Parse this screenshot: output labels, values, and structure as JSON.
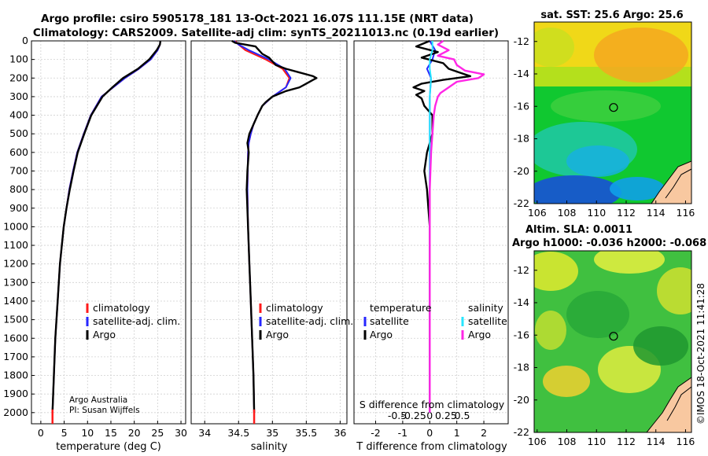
{
  "title": {
    "line1": "Argo profile: csiro 5905178_181 13-Oct-2021 16.07S 111.15E (NRT data)",
    "line2": "Climatology: CARS2009. Satellite-adj clim: synTS_20211013.nc (0.19d earlier)"
  },
  "colors": {
    "climatology": "#ff1a1a",
    "satellite": "#2626ff",
    "argo": "#000000",
    "sat_cyan": "#26e6ff",
    "sal_magenta": "#ff26e6"
  },
  "chart_data": [
    {
      "type": "line",
      "panel": "temperature",
      "xlabel": "temperature (deg C)",
      "ylabel": "",
      "xlim": [
        -2,
        31
      ],
      "ylim": [
        2060,
        0
      ],
      "xticks": [
        0,
        5,
        10,
        15,
        20,
        25,
        30
      ],
      "yticks": [
        0,
        100,
        200,
        300,
        400,
        500,
        600,
        700,
        800,
        900,
        1000,
        1100,
        1200,
        1300,
        1400,
        1500,
        1600,
        1700,
        1800,
        1900,
        2000
      ],
      "legend": [
        "climatology",
        "satellite-adj. clim.",
        "Argo"
      ],
      "legend_position": "lower-right",
      "annotations": [
        "Argo Australia",
        "PI: Susan Wijffels"
      ],
      "series": [
        {
          "name": "climatology",
          "depth": [
            0,
            20,
            50,
            100,
            150,
            200,
            250,
            300,
            400,
            500,
            600,
            700,
            800,
            900,
            1000,
            1200,
            1400,
            1600,
            1800,
            2000
          ],
          "values": [
            25.6,
            25.5,
            25.0,
            23.5,
            21.0,
            18.0,
            15.5,
            13.0,
            10.7,
            9.2,
            7.8,
            6.9,
            6.1,
            5.5,
            4.9,
            4.1,
            3.6,
            3.1,
            2.8,
            2.5
          ]
        },
        {
          "name": "satellite-adj. clim.",
          "depth": [
            0,
            20,
            50,
            100,
            150,
            200,
            250,
            300,
            400,
            500,
            600,
            700,
            800,
            900,
            1000,
            1200,
            1400,
            1600,
            1800,
            2000
          ],
          "values": [
            25.6,
            25.5,
            25.0,
            23.5,
            21.0,
            18.0,
            15.5,
            13.0,
            10.7,
            9.2,
            7.8,
            6.9,
            6.1,
            5.5,
            4.9,
            4.1,
            3.6,
            3.1,
            2.8,
            2.5
          ]
        },
        {
          "name": "Argo",
          "depth": [
            0,
            20,
            50,
            100,
            150,
            200,
            250,
            300,
            400,
            500,
            600,
            700,
            800,
            900,
            1000,
            1200,
            1400,
            1600,
            1800,
            2000
          ],
          "values": [
            25.6,
            25.5,
            24.8,
            23.2,
            20.8,
            17.6,
            15.3,
            13.2,
            10.8,
            9.3,
            7.9,
            7.0,
            6.2,
            5.5,
            4.9,
            4.1,
            3.6,
            3.1,
            2.8,
            2.5
          ]
        }
      ]
    },
    {
      "type": "line",
      "panel": "salinity",
      "xlabel": "salinity",
      "xlim": [
        33.8,
        36.1
      ],
      "ylim": [
        2060,
        0
      ],
      "xticks": [
        34,
        34.5,
        35,
        35.5,
        36
      ],
      "legend": [
        "climatology",
        "satellite-adj. clim.",
        "Argo"
      ],
      "legend_position": "lower-right",
      "series": [
        {
          "name": "climatology",
          "depth": [
            0,
            20,
            50,
            100,
            150,
            200,
            250,
            300,
            350,
            400,
            450,
            500,
            550,
            600,
            800,
            1000,
            1200,
            1400,
            1600,
            1800,
            2000
          ],
          "values": [
            34.45,
            34.5,
            34.6,
            34.9,
            35.15,
            35.25,
            35.2,
            35.0,
            34.85,
            34.78,
            34.72,
            34.68,
            34.65,
            34.64,
            34.63,
            34.64,
            34.66,
            34.68,
            34.7,
            34.72,
            34.73
          ]
        },
        {
          "name": "satellite-adj. clim.",
          "depth": [
            0,
            20,
            50,
            100,
            150,
            200,
            250,
            300,
            350,
            400,
            450,
            500,
            550,
            600,
            800,
            1000,
            1200,
            1400,
            1600,
            1800,
            2000
          ],
          "values": [
            34.43,
            34.5,
            34.65,
            34.95,
            35.18,
            35.27,
            35.2,
            35.0,
            34.85,
            34.78,
            34.72,
            34.68,
            34.65,
            34.64,
            34.63,
            34.64,
            34.66,
            34.68,
            34.7,
            34.72,
            34.73
          ]
        },
        {
          "name": "Argo",
          "depth": [
            0,
            10,
            30,
            50,
            70,
            90,
            110,
            130,
            150,
            170,
            190,
            200,
            210,
            230,
            250,
            270,
            300,
            330,
            350,
            400,
            450,
            500,
            550,
            600,
            700,
            800,
            1000,
            1200,
            1400,
            1600,
            1800,
            2000
          ],
          "values": [
            34.4,
            34.45,
            34.75,
            34.8,
            34.85,
            34.95,
            35.0,
            35.05,
            35.2,
            35.4,
            35.6,
            35.65,
            35.6,
            35.5,
            35.4,
            35.2,
            35.0,
            34.9,
            34.85,
            34.78,
            34.72,
            34.66,
            34.63,
            34.65,
            34.63,
            34.62,
            34.64,
            34.66,
            34.68,
            34.7,
            34.72,
            34.73
          ]
        }
      ]
    },
    {
      "type": "line",
      "panel": "difference",
      "xlabel": "T difference from climatology",
      "secondary_xlabel": "S difference from climatology",
      "xlim": [
        -2.8,
        2.9
      ],
      "ylim": [
        2060,
        0
      ],
      "xticks": [
        -2,
        -1,
        0,
        1,
        2
      ],
      "xticklabels": [
        "-2",
        "-1",
        "0",
        "1",
        "2"
      ],
      "secondary_xticks": [
        -0.5,
        -0.25,
        0,
        0.25,
        0.5
      ],
      "secondary_xticklabels": [
        "-0.5",
        "-0.25",
        "0",
        "0.25",
        "0.5"
      ],
      "legend_titles": [
        "temperature",
        "salinity"
      ],
      "legend": [
        "satellite",
        "Argo",
        "satellite",
        "Argo"
      ],
      "legend_position": "lower-right",
      "series": [
        {
          "name": "temperature satellite",
          "depth": [
            0,
            50,
            100,
            150,
            200,
            300,
            400,
            600,
            800,
            1000,
            1500,
            2000
          ],
          "values": [
            0.0,
            0.2,
            0.1,
            -0.1,
            0.05,
            0.0,
            0.0,
            0.0,
            0.0,
            0.0,
            0.0,
            0.0
          ]
        },
        {
          "name": "temperature Argo",
          "depth": [
            0,
            30,
            60,
            90,
            120,
            150,
            170,
            190,
            210,
            230,
            250,
            270,
            290,
            310,
            350,
            400,
            500,
            600,
            700,
            800,
            1000,
            1200,
            1500,
            1800,
            2000
          ],
          "values": [
            0.0,
            -0.5,
            0.3,
            -0.3,
            0.5,
            0.7,
            1.1,
            1.5,
            0.5,
            -0.3,
            -0.6,
            -0.2,
            -0.5,
            -0.3,
            -0.2,
            0.1,
            0.1,
            -0.1,
            -0.2,
            -0.1,
            0.0,
            0.0,
            0.0,
            0.0,
            0.0
          ]
        },
        {
          "name": "salinity satellite",
          "depth": [
            0,
            50,
            100,
            150,
            200,
            300,
            400,
            600,
            800,
            1000,
            1500,
            2000
          ],
          "values": [
            0.1,
            0.1,
            0.0,
            0.0,
            0.05,
            0.0,
            0.0,
            0.0,
            0.0,
            0.0,
            0.0,
            0.0
          ]
        },
        {
          "name": "salinity Argo",
          "depth": [
            0,
            20,
            50,
            80,
            100,
            130,
            160,
            180,
            200,
            220,
            250,
            280,
            300,
            350,
            400,
            500,
            600,
            800,
            1000,
            1400,
            1800,
            2000
          ],
          "values": [
            0.5,
            0.3,
            0.7,
            0.3,
            0.9,
            1.0,
            1.3,
            2.0,
            1.8,
            1.0,
            0.7,
            0.4,
            0.3,
            0.2,
            0.15,
            0.1,
            0.05,
            0.0,
            0.0,
            0.0,
            0.0,
            0.0
          ]
        }
      ]
    },
    {
      "type": "heatmap",
      "panel": "sst_map",
      "title": "sat. SST: 25.6 Argo: 25.6",
      "xlim": [
        105.8,
        116.4
      ],
      "ylim": [
        -22,
        -10.8
      ],
      "xticks": [
        106,
        108,
        110,
        112,
        114,
        116
      ],
      "yticks": [
        -12,
        -14,
        -16,
        -18,
        -20,
        -22
      ],
      "marker": {
        "lon": 111.15,
        "lat": -16.07
      }
    },
    {
      "type": "heatmap",
      "panel": "sla_map",
      "title": "Altim. SLA: 0.0011",
      "subtitle": "Argo h1000: -0.036 h2000: -0.068",
      "xlim": [
        105.8,
        116.4
      ],
      "ylim": [
        -22,
        -10.8
      ],
      "xticks": [
        106,
        108,
        110,
        112,
        114,
        116
      ],
      "yticks": [
        -12,
        -14,
        -16,
        -18,
        -20,
        -22
      ],
      "marker": {
        "lon": 111.15,
        "lat": -16.07
      }
    }
  ],
  "sidebar_stamp": "©IMOS 18-Oct-2021 11:41:28"
}
